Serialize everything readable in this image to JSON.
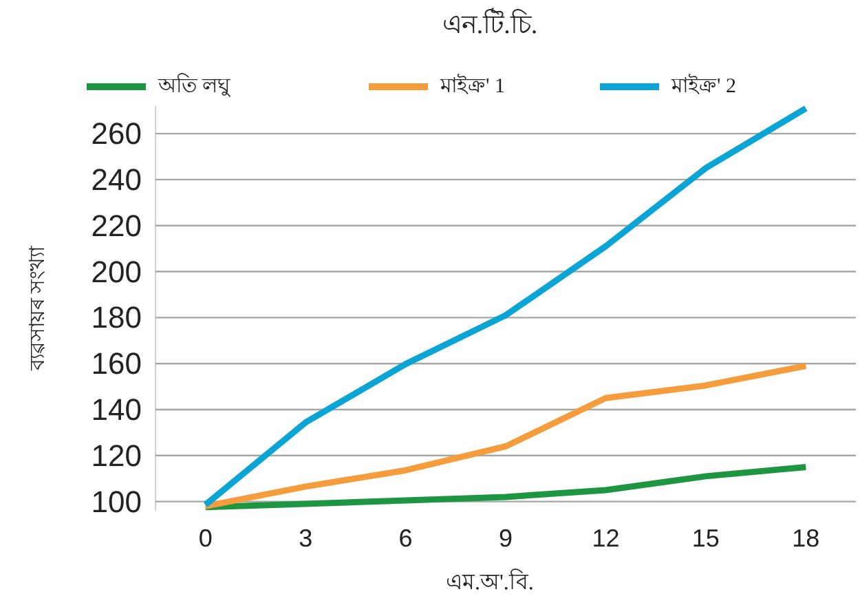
{
  "chart_data": {
    "type": "line",
    "title": "এন.টি.চি.",
    "xlabel": "এম.অ'.বি.",
    "ylabel": "ব্যৱসায়ৰ সংখ্যা",
    "x": [
      0,
      3,
      6,
      9,
      12,
      15,
      18
    ],
    "series": [
      {
        "name": "অতি লঘু",
        "color": "#1e9641",
        "values": [
          97.6,
          99,
          100.5,
          102,
          105,
          111,
          115
        ]
      },
      {
        "name": "মাইক্ৰ' 1",
        "color": "#f59d3d",
        "values": [
          98,
          106.5,
          113.6,
          124,
          145,
          150.5,
          159
        ]
      },
      {
        "name": "মাইক্ৰ' 2",
        "color": "#0aa5d4",
        "values": [
          98.6,
          134.4,
          159.8,
          181,
          211,
          245,
          271
        ]
      }
    ],
    "xlim": [
      -1.5,
      19.5
    ],
    "ylim": [
      96,
      272
    ],
    "xticks": [
      0,
      3,
      6,
      9,
      12,
      15,
      18
    ],
    "yticks": [
      100,
      120,
      140,
      160,
      180,
      200,
      220,
      240,
      260
    ],
    "grid": "y",
    "legend": "top"
  }
}
